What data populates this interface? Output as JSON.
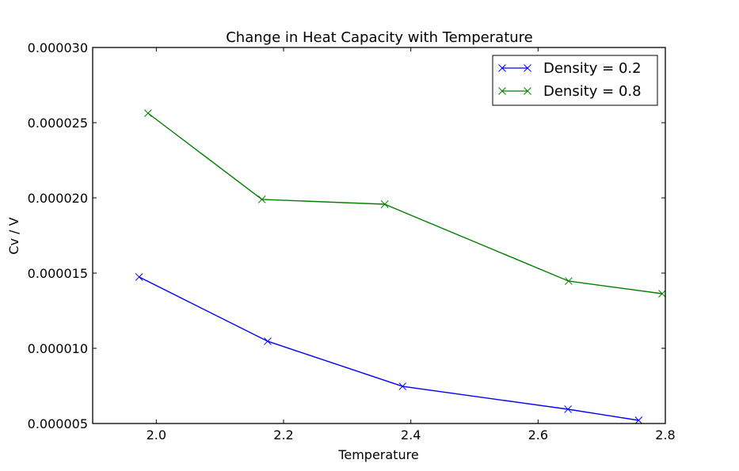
{
  "chart_data": {
    "type": "line",
    "title": "Change in Heat Capacity with Temperature",
    "xlabel": "Temperature",
    "ylabel": "Cv / V",
    "xlim": [
      1.9,
      2.8
    ],
    "ylim": [
      5e-06,
      3e-05
    ],
    "xticks": [
      2.0,
      2.2,
      2.4,
      2.6,
      2.8
    ],
    "xtick_labels": [
      "2.0",
      "2.2",
      "2.4",
      "2.6",
      "2.8"
    ],
    "yticks": [
      5e-06,
      1e-05,
      1.5e-05,
      2e-05,
      2.5e-05,
      3e-05
    ],
    "ytick_labels": [
      "0.000005",
      "0.000010",
      "0.000015",
      "0.000020",
      "0.000025",
      "0.000030"
    ],
    "grid": false,
    "legend_position": "top-right",
    "series": [
      {
        "name": "Density = 0.2",
        "color": "#0000ff",
        "marker": "x",
        "x": [
          1.973,
          2.175,
          2.387,
          2.647,
          2.758
        ],
        "y": [
          1.474e-05,
          1.047e-05,
          7.47e-06,
          5.95e-06,
          5.21e-06
        ]
      },
      {
        "name": "Density = 0.8",
        "color": "#008000",
        "marker": "x",
        "x": [
          1.987,
          2.166,
          2.359,
          2.648,
          2.795
        ],
        "y": [
          2.563e-05,
          1.99e-05,
          1.958e-05,
          1.447e-05,
          1.363e-05
        ]
      }
    ]
  }
}
